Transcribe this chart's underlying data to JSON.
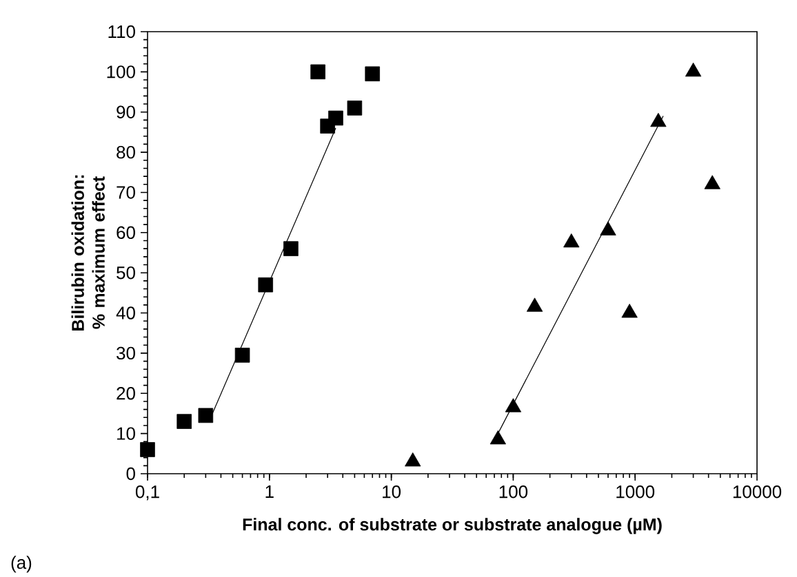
{
  "chart_data": {
    "type": "scatter",
    "xlabel": "Final conc. of substrate or substrate analogue (µM)",
    "ylabel": "Bilirubin oxidation: % maximum effect",
    "log": "x",
    "grid": false,
    "xlim": [
      0.1,
      10000
    ],
    "xticks": [
      {
        "value": 0.1,
        "label": "0,1"
      },
      1,
      10,
      100,
      1000,
      10000
    ],
    "ylim": [
      0,
      110
    ],
    "yticks": [
      0,
      10,
      20,
      30,
      40,
      50,
      60,
      70,
      80,
      90,
      100,
      110
    ],
    "annotations": [
      "(a)"
    ],
    "series": [
      {
        "marker": "square",
        "color": "#000000",
        "x": [
          0.1,
          0.2,
          0.3,
          0.6,
          0.93,
          1.5,
          2.5,
          3.0,
          3.5,
          5,
          7
        ],
        "values": [
          6,
          13,
          14.5,
          29.5,
          47,
          56,
          100,
          86.5,
          88.5,
          91,
          99.5
        ]
      },
      {
        "marker": "triangle",
        "color": "#000000",
        "x": [
          15,
          75,
          100,
          150,
          300,
          600,
          900,
          1550,
          3000,
          4300
        ],
        "values": [
          3,
          8.5,
          16.5,
          41.5,
          57.5,
          60.5,
          40,
          87.5,
          100,
          72
        ]
      },
      {
        "type": "line",
        "marker": "none",
        "line_style": "solid",
        "color": "#000000",
        "x": [
          0.33,
          3.5
        ],
        "values": [
          14,
          86
        ]
      },
      {
        "type": "line",
        "marker": "none",
        "line_style": "solid",
        "color": "#000000",
        "x": [
          75,
          1700
        ],
        "values": [
          10,
          89
        ]
      }
    ]
  }
}
